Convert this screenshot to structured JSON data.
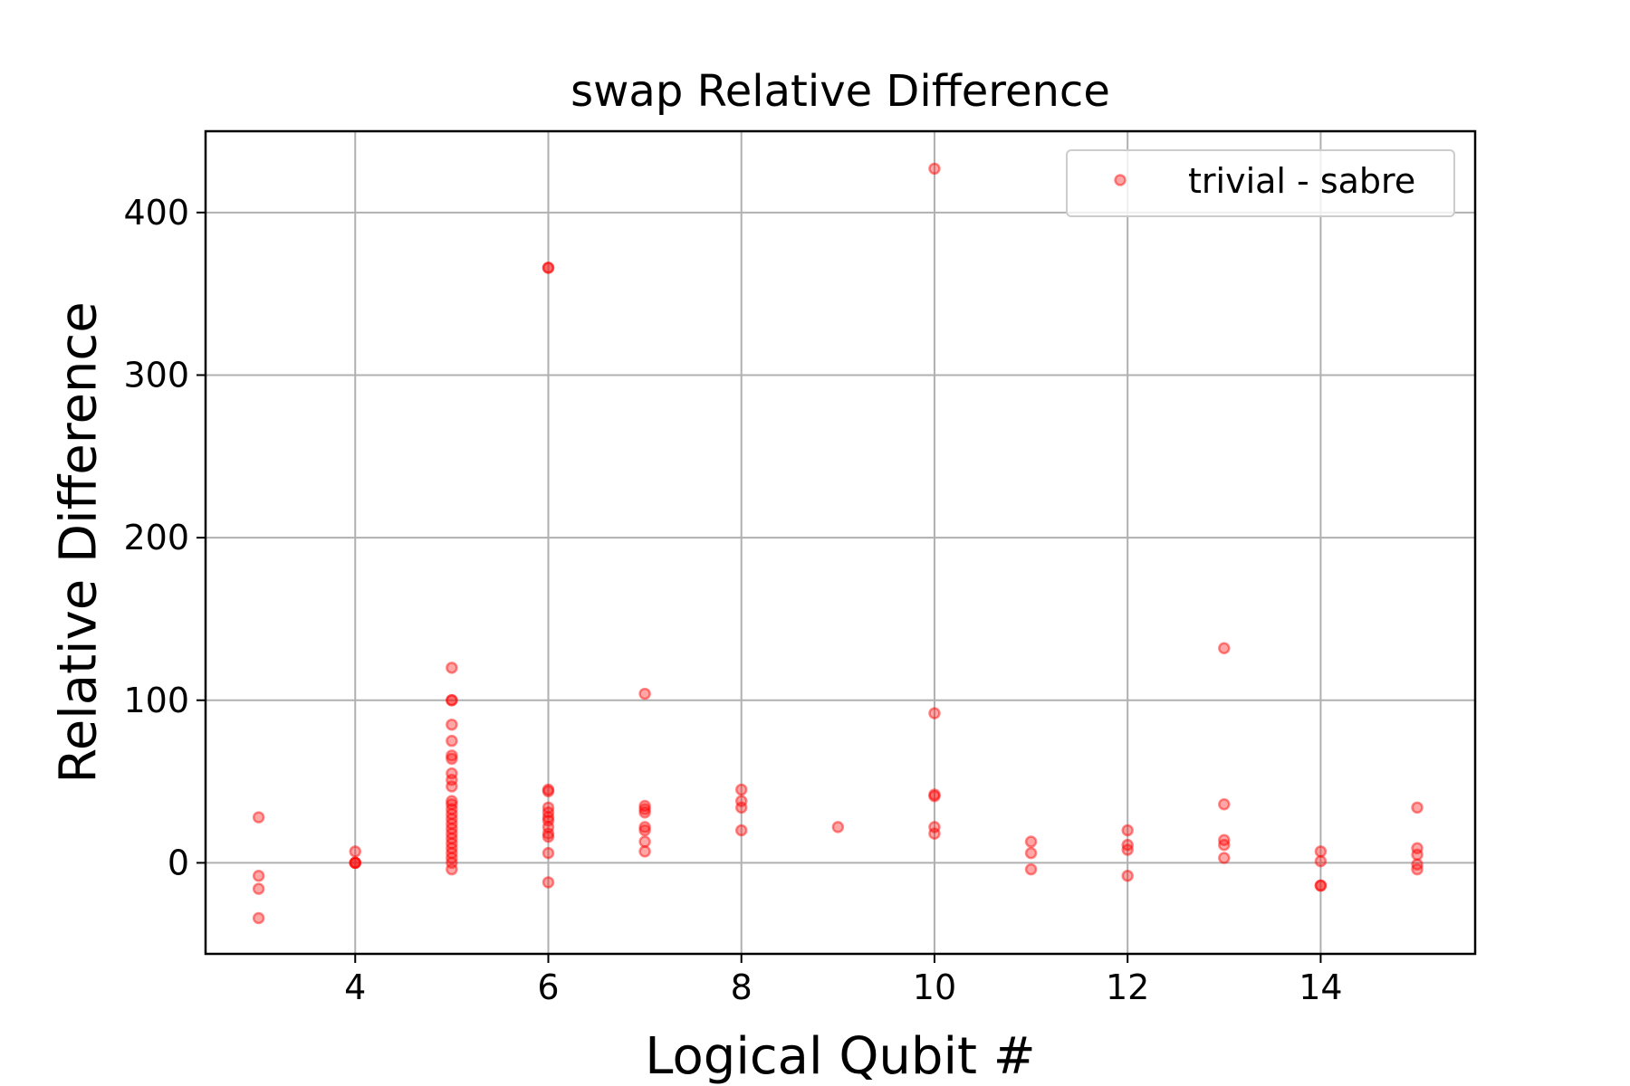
{
  "chart_data": {
    "type": "scatter",
    "title": "swap Relative Difference",
    "xlabel": "Logical Qubit #",
    "ylabel": "Relative Difference",
    "xlim": [
      2.45,
      15.6
    ],
    "ylim": [
      -56,
      450
    ],
    "xticks": [
      4,
      6,
      8,
      10,
      12,
      14
    ],
    "yticks": [
      0,
      100,
      200,
      300,
      400
    ],
    "grid": true,
    "legend": {
      "placement": "top-right",
      "entries": [
        "trivial - sabre"
      ]
    },
    "series": [
      {
        "name": "trivial - sabre",
        "color": "#ff0000",
        "marker": "circle",
        "points": [
          [
            3,
            28
          ],
          [
            3,
            -8
          ],
          [
            3,
            -16
          ],
          [
            3,
            -34
          ],
          [
            4,
            7
          ],
          [
            4,
            0
          ],
          [
            4,
            0
          ],
          [
            4,
            0
          ],
          [
            5,
            120
          ],
          [
            5,
            100
          ],
          [
            5,
            100
          ],
          [
            5,
            85
          ],
          [
            5,
            75
          ],
          [
            5,
            66
          ],
          [
            5,
            64
          ],
          [
            5,
            55
          ],
          [
            5,
            51
          ],
          [
            5,
            47
          ],
          [
            5,
            38
          ],
          [
            5,
            36
          ],
          [
            5,
            33
          ],
          [
            5,
            30
          ],
          [
            5,
            27
          ],
          [
            5,
            24
          ],
          [
            5,
            21
          ],
          [
            5,
            18
          ],
          [
            5,
            15
          ],
          [
            5,
            12
          ],
          [
            5,
            9
          ],
          [
            5,
            6
          ],
          [
            5,
            3
          ],
          [
            5,
            0
          ],
          [
            5,
            -4
          ],
          [
            6,
            366
          ],
          [
            6,
            366
          ],
          [
            6,
            45
          ],
          [
            6,
            44
          ],
          [
            6,
            34
          ],
          [
            6,
            31
          ],
          [
            6,
            28
          ],
          [
            6,
            26
          ],
          [
            6,
            22
          ],
          [
            6,
            18
          ],
          [
            6,
            16
          ],
          [
            6,
            6
          ],
          [
            6,
            -12
          ],
          [
            7,
            104
          ],
          [
            7,
            35
          ],
          [
            7,
            33
          ],
          [
            7,
            31
          ],
          [
            7,
            22
          ],
          [
            7,
            20
          ],
          [
            7,
            13
          ],
          [
            7,
            7
          ],
          [
            8,
            45
          ],
          [
            8,
            38
          ],
          [
            8,
            34
          ],
          [
            8,
            20
          ],
          [
            9,
            22
          ],
          [
            10,
            427
          ],
          [
            10,
            92
          ],
          [
            10,
            42
          ],
          [
            10,
            41
          ],
          [
            10,
            22
          ],
          [
            10,
            18
          ],
          [
            11,
            13
          ],
          [
            11,
            6
          ],
          [
            11,
            -4
          ],
          [
            12,
            20
          ],
          [
            12,
            11
          ],
          [
            12,
            8
          ],
          [
            12,
            -8
          ],
          [
            13,
            132
          ],
          [
            13,
            36
          ],
          [
            13,
            14
          ],
          [
            13,
            11
          ],
          [
            13,
            3
          ],
          [
            14,
            7
          ],
          [
            14,
            1
          ],
          [
            14,
            -14
          ],
          [
            14,
            -14
          ],
          [
            15,
            34
          ],
          [
            15,
            9
          ],
          [
            15,
            5
          ],
          [
            15,
            -1
          ],
          [
            15,
            -4
          ]
        ]
      }
    ]
  }
}
